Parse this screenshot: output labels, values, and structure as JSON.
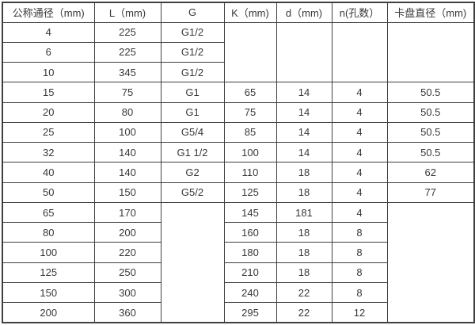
{
  "chart_data": {
    "type": "table",
    "columns": [
      "公称通径（mm)",
      "L（mm)",
      "G",
      "K（mm)",
      "d（mm)",
      "n(孔数）",
      "卡盘直径（mm)"
    ],
    "rows": [
      [
        "4",
        "225",
        "G1/2",
        {
          "text": "",
          "rowspan": 3
        },
        {
          "text": "",
          "rowspan": 3
        },
        {
          "text": "",
          "rowspan": 3
        },
        {
          "text": "",
          "rowspan": 3
        }
      ],
      [
        "6",
        "225",
        "G1/2",
        null,
        null,
        null,
        null
      ],
      [
        "10",
        "345",
        "G1/2",
        null,
        null,
        null,
        null
      ],
      [
        "15",
        "75",
        "G1",
        "65",
        "14",
        "4",
        "50.5"
      ],
      [
        "20",
        "80",
        "G1",
        "75",
        "14",
        "4",
        "50.5"
      ],
      [
        "25",
        "100",
        "G5/4",
        "85",
        "14",
        "4",
        "50.5"
      ],
      [
        "32",
        "140",
        "G1 1/2",
        "100",
        "14",
        "4",
        "50.5"
      ],
      [
        "40",
        "140",
        "G2",
        "110",
        "18",
        "4",
        "62"
      ],
      [
        "50",
        "150",
        "G5/2",
        "125",
        "18",
        "4",
        "77"
      ],
      [
        "65",
        "170",
        {
          "text": "",
          "rowspan": 6
        },
        "145",
        "181",
        "4",
        {
          "text": "",
          "rowspan": 6
        }
      ],
      [
        "80",
        "200",
        null,
        "160",
        "18",
        "8",
        null
      ],
      [
        "100",
        "220",
        null,
        "180",
        "18",
        "8",
        null
      ],
      [
        "125",
        "250",
        null,
        "210",
        "18",
        "8",
        null
      ],
      [
        "150",
        "300",
        null,
        "240",
        "22",
        "8",
        null
      ],
      [
        "200",
        "360",
        null,
        "295",
        "22",
        "12",
        null
      ]
    ],
    "layout": {
      "grid": true,
      "header_position": "top",
      "merged_empty_regions": [
        "columns K/d/n/卡盘直径 merged blank for rows 4,6,10",
        "columns G and 卡盘直径 merged blank for rows 65-200"
      ]
    }
  },
  "colors": {
    "border": "#404040",
    "text": "#383838",
    "background": "#ffffff"
  }
}
